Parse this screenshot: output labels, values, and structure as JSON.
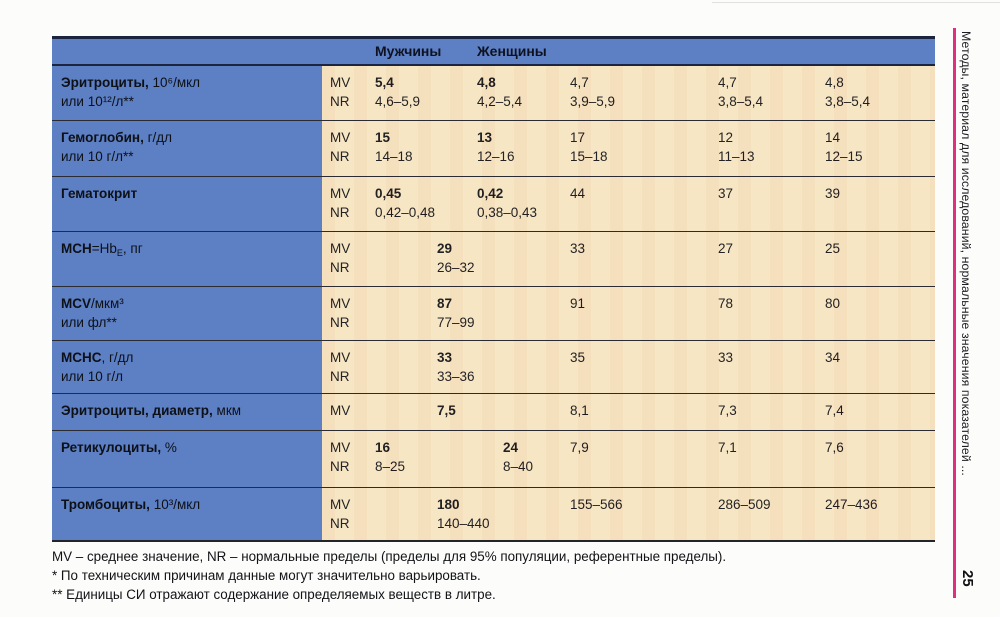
{
  "page": {
    "number": "25",
    "sidebar_title": "Методы, материал для исследований, нормальные значения показателей ...",
    "accent_color": "#e02f7f",
    "table_blue": "#5d7fc4",
    "table_cream": "#f7e5c3"
  },
  "table": {
    "mv_label": "MV",
    "nr_label": "NR",
    "header": {
      "men": "Мужчины",
      "women": "Женщины"
    },
    "rows": [
      {
        "label_bold": "Эритроциты,",
        "label_rest": " 10⁶/мкл",
        "label_line2": "или 10¹²/л**",
        "c1": {
          "mv": "5,4",
          "nr": "4,6–5,9"
        },
        "c2": {
          "mv": "4,8",
          "nr": "4,2–5,4"
        },
        "c3": {
          "mv": "4,7",
          "nr": "3,9–5,9"
        },
        "c4": {
          "mv": "4,7",
          "nr": "3,8–5,4"
        },
        "c5": {
          "mv": "4,8",
          "nr": "3,8–5,4"
        }
      },
      {
        "label_bold": "Гемоглобин,",
        "label_rest": " г/дл",
        "label_line2": "или 10 г/л**",
        "c1": {
          "mv": "15",
          "nr": "14–18"
        },
        "c2": {
          "mv": "13",
          "nr": "12–16"
        },
        "c3": {
          "mv": "17",
          "nr": "15–18"
        },
        "c4": {
          "mv": "12",
          "nr": "11–13"
        },
        "c5": {
          "mv": "14",
          "nr": "12–15"
        }
      },
      {
        "label_bold": "Гематокрит",
        "c1": {
          "mv": "0,45",
          "nr": "0,42–0,48"
        },
        "c2": {
          "mv": "0,42",
          "nr": "0,38–0,43"
        },
        "c3": {
          "mv": "44"
        },
        "c4": {
          "mv": "37"
        },
        "c5": {
          "mv": "39"
        }
      },
      {
        "label_bold": "MCH",
        "label_rest": "=Hb",
        "label_sub": "E",
        "label_rest2": ", пг",
        "merged": {
          "mv": "29",
          "nr": "26–32"
        },
        "c3": {
          "mv": "33"
        },
        "c4": {
          "mv": "27"
        },
        "c5": {
          "mv": "25"
        }
      },
      {
        "label_bold": "MCV",
        "label_rest": "/мкм³",
        "label_line2": "или фл**",
        "merged": {
          "mv": "87",
          "nr": "77–99"
        },
        "c3": {
          "mv": "91"
        },
        "c4": {
          "mv": "78"
        },
        "c5": {
          "mv": "80"
        }
      },
      {
        "label_bold": "MCHC",
        "label_rest": ", г/дл",
        "label_line2": "или 10 г/л",
        "merged": {
          "mv": "33",
          "nr": "33–36"
        },
        "c3": {
          "mv": "35"
        },
        "c4": {
          "mv": "33"
        },
        "c5": {
          "mv": "34"
        }
      },
      {
        "label_bold": "Эритроциты, диаметр,",
        "label_rest": " мкм",
        "merged": {
          "mv": "7,5"
        },
        "c3": {
          "mv": "8,1"
        },
        "c4": {
          "mv": "7,3"
        },
        "c5": {
          "mv": "7,4"
        }
      },
      {
        "label_bold": "Ретикулоциты,",
        "label_rest": " %",
        "c1": {
          "mv": "16",
          "nr": "8–25"
        },
        "c2": {
          "mv": "24",
          "nr": "8–40"
        },
        "c3": {
          "mv": "7,9"
        },
        "c4": {
          "mv": "7,1"
        },
        "c5": {
          "mv": "7,6"
        }
      },
      {
        "label_bold": "Тромбоциты,",
        "label_rest": " 10³/мкл",
        "merged": {
          "mv": "180",
          "nr": "140–440"
        },
        "c3": {
          "mv": "155–566"
        },
        "c4": {
          "mv": "286–509"
        },
        "c5": {
          "mv": "247–436"
        }
      }
    ]
  },
  "footnotes": {
    "line1": "MV – среднее значение, NR – нормальные пределы (пределы для 95% популяции, референтные пределы).",
    "line2": "* По техническим причинам данные могут значительно варьировать.",
    "line3": "** Единицы СИ отражают содержание определяемых веществ в литре."
  }
}
